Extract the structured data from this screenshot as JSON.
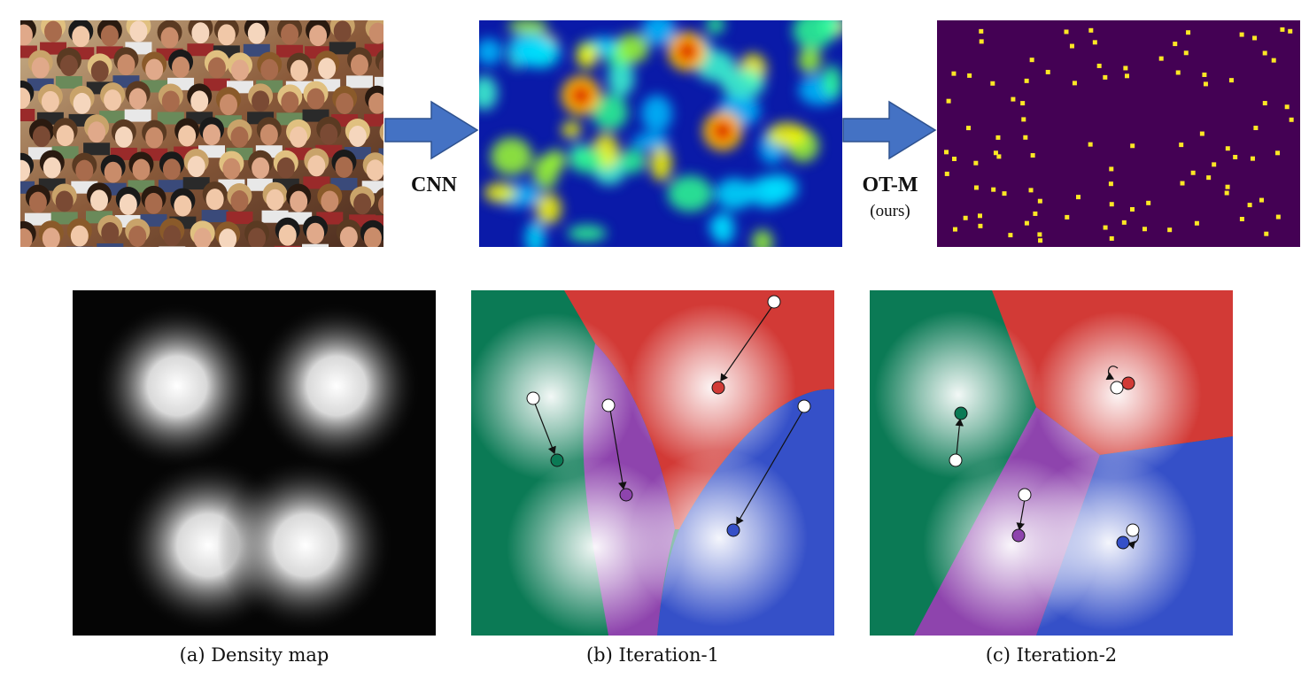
{
  "top_row": {
    "arrow1_label": "CNN",
    "arrow2_label": "OT-M",
    "arrow2_sublabel": "(ours)",
    "panel1": "crowd-photo",
    "panel2": "density-heatmap",
    "panel3": "point-map"
  },
  "bottom_row": {
    "captions": [
      "(a) Density map",
      "(b) Iteration-1",
      "(c) Iteration-2"
    ]
  },
  "colors": {
    "arrow": "#4472c4",
    "arrow_stroke": "#2f528f",
    "point_map_bg": "#440154",
    "point_map_dots": "#fde725",
    "green_region": "#0b7a55",
    "red_region": "#d23a36",
    "blue_region": "#3550c8",
    "purple_region": "#8e44ad"
  }
}
